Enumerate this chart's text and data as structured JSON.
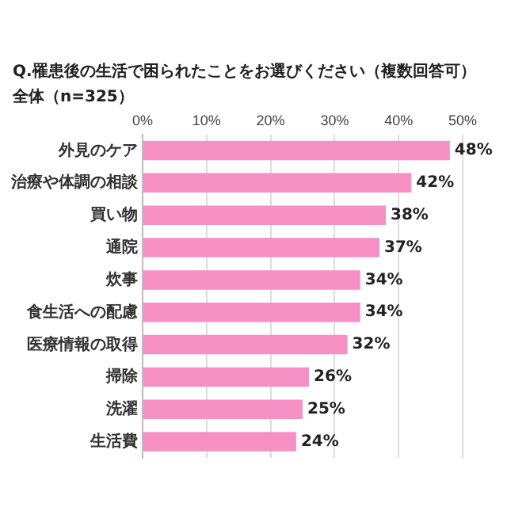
{
  "chart_data": {
    "type": "bar",
    "orientation": "horizontal",
    "title": "Q.罹患後の生活で困られたことをお選びください（複数回答可）",
    "subtitle": "全体（n=325）",
    "categories": [
      "外見のケア",
      "治療や体調の相談",
      "買い物",
      "通院",
      "炊事",
      "食生活への配慮",
      "医療情報の取得",
      "掃除",
      "洗濯",
      "生活費"
    ],
    "values": [
      48,
      42,
      38,
      37,
      34,
      34,
      32,
      26,
      25,
      24
    ],
    "value_labels": [
      "48%",
      "42%",
      "38%",
      "37%",
      "34%",
      "34%",
      "32%",
      "26%",
      "25%",
      "24%"
    ],
    "color": "#f68fc4",
    "xlim": [
      0,
      50
    ],
    "xticks": [
      {
        "value": 0,
        "label": "0%"
      },
      {
        "value": 10,
        "label": "10%"
      },
      {
        "value": 20,
        "label": "20%"
      },
      {
        "value": 30,
        "label": "30%"
      },
      {
        "value": 40,
        "label": "40%"
      },
      {
        "value": 50,
        "label": "50%"
      }
    ],
    "grid": "x",
    "legend": false
  }
}
